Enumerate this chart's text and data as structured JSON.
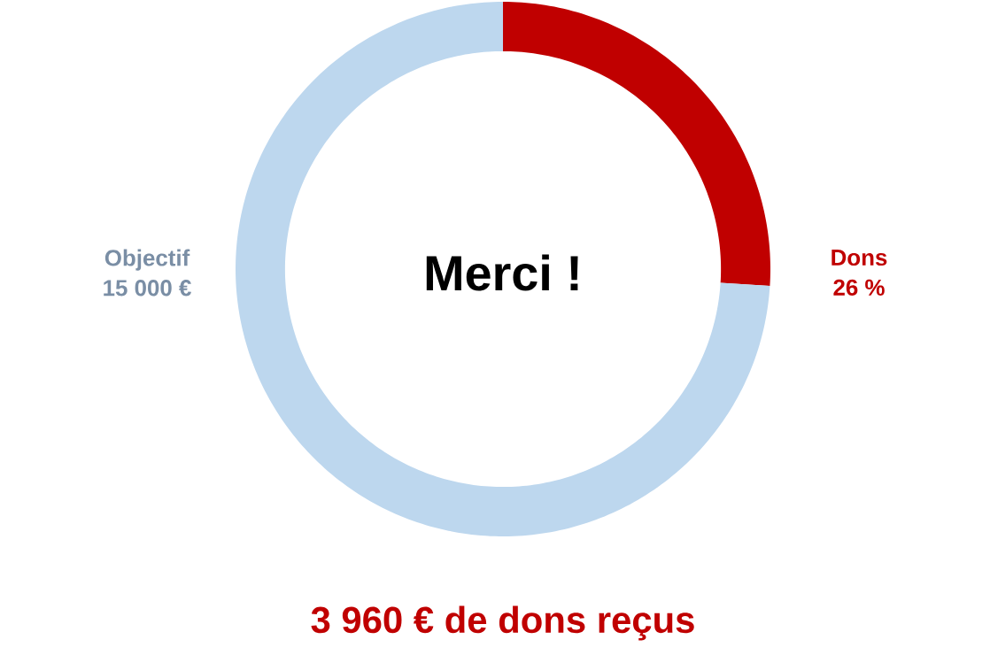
{
  "chart_data": {
    "type": "donut",
    "categories": [
      "Dons",
      "Objectif"
    ],
    "values": [
      26,
      74
    ],
    "colors": [
      "#c00000",
      "#bdd7ee"
    ],
    "value_labels": [
      "26 %",
      null
    ],
    "annotations": [
      "Merci !",
      "3 960 € de dons reçus",
      "15 000 €"
    ]
  }
}
